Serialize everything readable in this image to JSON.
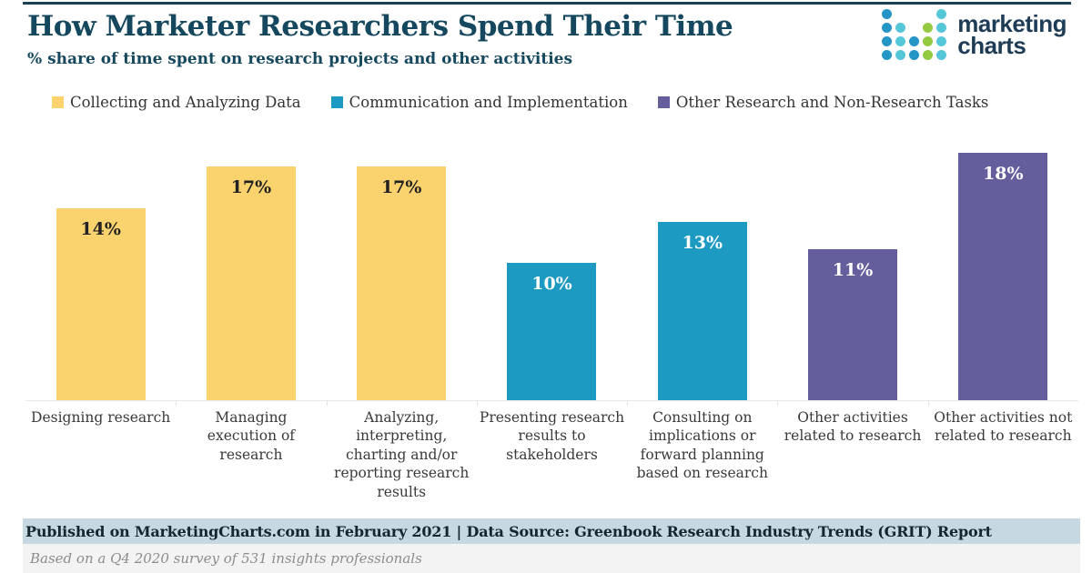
{
  "header": {
    "title": "How Marketer Researchers Spend Their Time",
    "subtitle": "% share of time spent on research projects and other activities"
  },
  "logo": {
    "name": "marketingcharts-logo",
    "text_line1": "marketing",
    "text_line2": "charts",
    "colors": {
      "blue": "#2595c6",
      "teal": "#56c7d8",
      "green": "#94ca41",
      "text": "#1e3c55"
    },
    "dot_pattern": [
      [
        "blue",
        null,
        null,
        null,
        "teal"
      ],
      [
        "blue",
        "teal",
        null,
        "green",
        "teal"
      ],
      [
        "blue",
        "teal",
        "blue",
        "green",
        "teal"
      ],
      [
        "blue",
        "teal",
        "blue",
        "green",
        "teal"
      ]
    ]
  },
  "legend": [
    {
      "label": "Collecting and Analyzing Data",
      "color": "#fbd36e"
    },
    {
      "label": "Communication and Implementation",
      "color": "#1d9ac2"
    },
    {
      "label": "Other Research and Non-Research Tasks",
      "color": "#645e9d"
    }
  ],
  "chart_data": {
    "type": "bar",
    "title": "How Marketer Researchers Spend Their Time",
    "subtitle": "% share of time spent on research projects and other activities",
    "unit": "percent share of time",
    "ylim": [
      0,
      19
    ],
    "grid": false,
    "axis_labels_shown": false,
    "legend_position": "top",
    "categories": [
      "Designing research",
      "Managing execution of research",
      "Analyzing, interpreting, charting and/or reporting research results",
      "Presenting research results to stakeholders",
      "Consulting on implications or forward planning based on research",
      "Other activities related to research",
      "Other activities not related to research"
    ],
    "values": [
      14,
      17,
      17,
      10,
      13,
      11,
      18
    ],
    "bars": [
      {
        "category": "Designing research",
        "value": 14,
        "label": "14%",
        "group": "Collecting and Analyzing Data",
        "color": "#fbd36e",
        "label_color": "#222222"
      },
      {
        "category": "Managing execution of research",
        "value": 17,
        "label": "17%",
        "group": "Collecting and Analyzing Data",
        "color": "#fbd36e",
        "label_color": "#222222"
      },
      {
        "category": "Analyzing, interpreting, charting and/or reporting research results",
        "value": 17,
        "label": "17%",
        "group": "Collecting and Analyzing Data",
        "color": "#fbd36e",
        "label_color": "#222222"
      },
      {
        "category": "Presenting research results to stakeholders",
        "value": 10,
        "label": "10%",
        "group": "Communication and Implementation",
        "color": "#1d9ac2",
        "label_color": "#ffffff"
      },
      {
        "category": "Consulting on implications or forward planning based on research",
        "value": 13,
        "label": "13%",
        "group": "Communication and Implementation",
        "color": "#1d9ac2",
        "label_color": "#ffffff"
      },
      {
        "category": "Other activities related to research",
        "value": 11,
        "label": "11%",
        "group": "Other Research and Non-Research Tasks",
        "color": "#645e9d",
        "label_color": "#ffffff"
      },
      {
        "category": "Other activities not related to research",
        "value": 18,
        "label": "18%",
        "group": "Other Research and Non-Research Tasks",
        "color": "#645e9d",
        "label_color": "#ffffff"
      }
    ]
  },
  "footer": {
    "published_line": "Published on MarketingCharts.com in February 2021 | Data Source: Greenbook Research Industry Trends (GRIT) Report",
    "note": "Based on a Q4 2020 survey of 531 insights professionals"
  }
}
